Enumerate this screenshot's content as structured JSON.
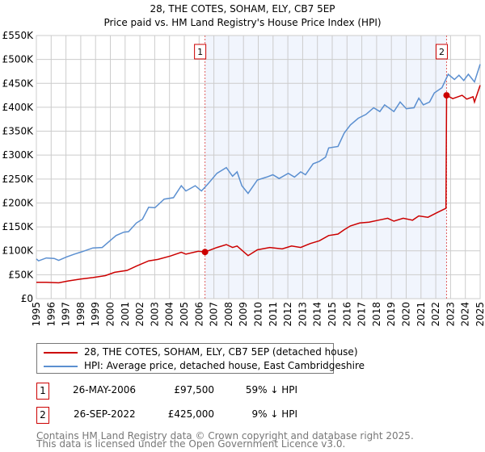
{
  "chart_data": {
    "type": "line",
    "title": "28, THE COTES, SOHAM, ELY, CB7 5EP",
    "subtitle": "Price paid vs. HM Land Registry's House Price Index (HPI)",
    "xlim": [
      1995,
      2025
    ],
    "ylim": [
      0,
      550000
    ],
    "yticks": [
      {
        "v": 0,
        "label": "£0"
      },
      {
        "v": 50000,
        "label": "£50K"
      },
      {
        "v": 100000,
        "label": "£100K"
      },
      {
        "v": 150000,
        "label": "£150K"
      },
      {
        "v": 200000,
        "label": "£200K"
      },
      {
        "v": 250000,
        "label": "£250K"
      },
      {
        "v": 300000,
        "label": "£300K"
      },
      {
        "v": 350000,
        "label": "£350K"
      },
      {
        "v": 400000,
        "label": "£400K"
      },
      {
        "v": 450000,
        "label": "£450K"
      },
      {
        "v": 500000,
        "label": "£500K"
      },
      {
        "v": 550000,
        "label": "£550K"
      }
    ],
    "xticks": [
      "1995",
      "1996",
      "1997",
      "1998",
      "1999",
      "2000",
      "2001",
      "2002",
      "2003",
      "2004",
      "2005",
      "2006",
      "2007",
      "2008",
      "2009",
      "2010",
      "2011",
      "2012",
      "2013",
      "2014",
      "2015",
      "2016",
      "2017",
      "2018",
      "2019",
      "2020",
      "2021",
      "2022",
      "2023",
      "2024",
      "2025"
    ],
    "grid": true,
    "shaded_range": [
      2006.4,
      2022.73
    ],
    "series": [
      {
        "name": "28, THE COTES, SOHAM, ELY, CB7 5EP (detached house)",
        "color": "#cc0000",
        "x": [
          1995.0,
          1995.67,
          1996.51,
          1997.14,
          1997.98,
          1998.82,
          1999.66,
          2000.29,
          2001.13,
          2001.76,
          2002.59,
          2003.22,
          2004.06,
          2004.8,
          2005.11,
          2005.95,
          2006.4,
          2007.21,
          2007.84,
          2008.26,
          2008.57,
          2009.31,
          2009.94,
          2010.78,
          2011.62,
          2012.25,
          2012.87,
          2013.5,
          2014.13,
          2014.76,
          2015.39,
          2015.81,
          2016.23,
          2016.86,
          2017.49,
          2018.12,
          2018.75,
          2019.17,
          2019.8,
          2020.43,
          2020.85,
          2021.47,
          2022.1,
          2022.69,
          2022.73,
          2023.15,
          2023.78,
          2024.1,
          2024.52,
          2024.62,
          2025.0
        ],
        "y": [
          34000,
          34000,
          33000,
          37000,
          41000,
          44000,
          48000,
          55000,
          59000,
          68000,
          79000,
          82000,
          89000,
          97000,
          93000,
          99000,
          97500,
          107000,
          113000,
          107000,
          110000,
          90000,
          102000,
          107000,
          104000,
          110000,
          107000,
          115000,
          121000,
          132000,
          135000,
          144000,
          152000,
          158000,
          160000,
          164000,
          168000,
          162000,
          168000,
          164000,
          173000,
          170000,
          180000,
          189000,
          425000,
          418000,
          425000,
          417000,
          422000,
          411000,
          446000
        ]
      },
      {
        "name": "HPI: Average price, detached house, East Cambridgeshire",
        "color": "#5b8fd0",
        "x": [
          1995.0,
          1995.15,
          1995.67,
          1996.2,
          1996.51,
          1997.03,
          1997.56,
          1998.08,
          1998.82,
          1999.45,
          1999.97,
          2000.39,
          2000.92,
          2001.23,
          2001.76,
          2002.17,
          2002.59,
          2003.01,
          2003.64,
          2004.27,
          2004.8,
          2005.11,
          2005.74,
          2006.16,
          2006.58,
          2007.21,
          2007.84,
          2008.26,
          2008.57,
          2008.89,
          2009.31,
          2009.94,
          2010.57,
          2010.99,
          2011.41,
          2012.03,
          2012.45,
          2012.87,
          2013.19,
          2013.71,
          2014.13,
          2014.55,
          2014.76,
          2015.39,
          2015.81,
          2016.23,
          2016.76,
          2017.28,
          2017.8,
          2018.22,
          2018.54,
          2019.17,
          2019.59,
          2020.01,
          2020.53,
          2020.85,
          2021.16,
          2021.58,
          2021.9,
          2022.42,
          2022.84,
          2023.26,
          2023.57,
          2023.89,
          2024.2,
          2024.62,
          2025.0
        ],
        "y": [
          83000,
          79000,
          85000,
          84000,
          80000,
          87000,
          93000,
          98000,
          106000,
          107000,
          121000,
          132000,
          139000,
          140000,
          158000,
          166000,
          191000,
          190000,
          208000,
          211000,
          236000,
          225000,
          236000,
          225000,
          239000,
          262000,
          274000,
          256000,
          265000,
          236000,
          220000,
          248000,
          254000,
          259000,
          251000,
          262000,
          254000,
          265000,
          259000,
          282000,
          287000,
          296000,
          315000,
          318000,
          346000,
          363000,
          377000,
          385000,
          399000,
          391000,
          405000,
          391000,
          411000,
          397000,
          399000,
          419000,
          405000,
          411000,
          430000,
          441000,
          469000,
          458000,
          467000,
          456000,
          469000,
          453000,
          490000
        ]
      }
    ],
    "markers": [
      {
        "label": "1",
        "x": 2006.4,
        "y": 97500
      },
      {
        "label": "2",
        "x": 2022.73,
        "y": 425000
      }
    ]
  },
  "legend": {
    "items": [
      "28, THE COTES, SOHAM, ELY, CB7 5EP (detached house)",
      "HPI: Average price, detached house, East Cambridgeshire"
    ]
  },
  "sales": [
    {
      "num": "1",
      "date": "26-MAY-2006",
      "price": "£97,500",
      "hpi": "59% ↓ HPI"
    },
    {
      "num": "2",
      "date": "26-SEP-2022",
      "price": "£425,000",
      "hpi": "9% ↓ HPI"
    }
  ],
  "footer": {
    "line1": "Contains HM Land Registry data © Crown copyright and database right 2025.",
    "line2": "This data is licensed under the Open Government Licence v3.0."
  }
}
